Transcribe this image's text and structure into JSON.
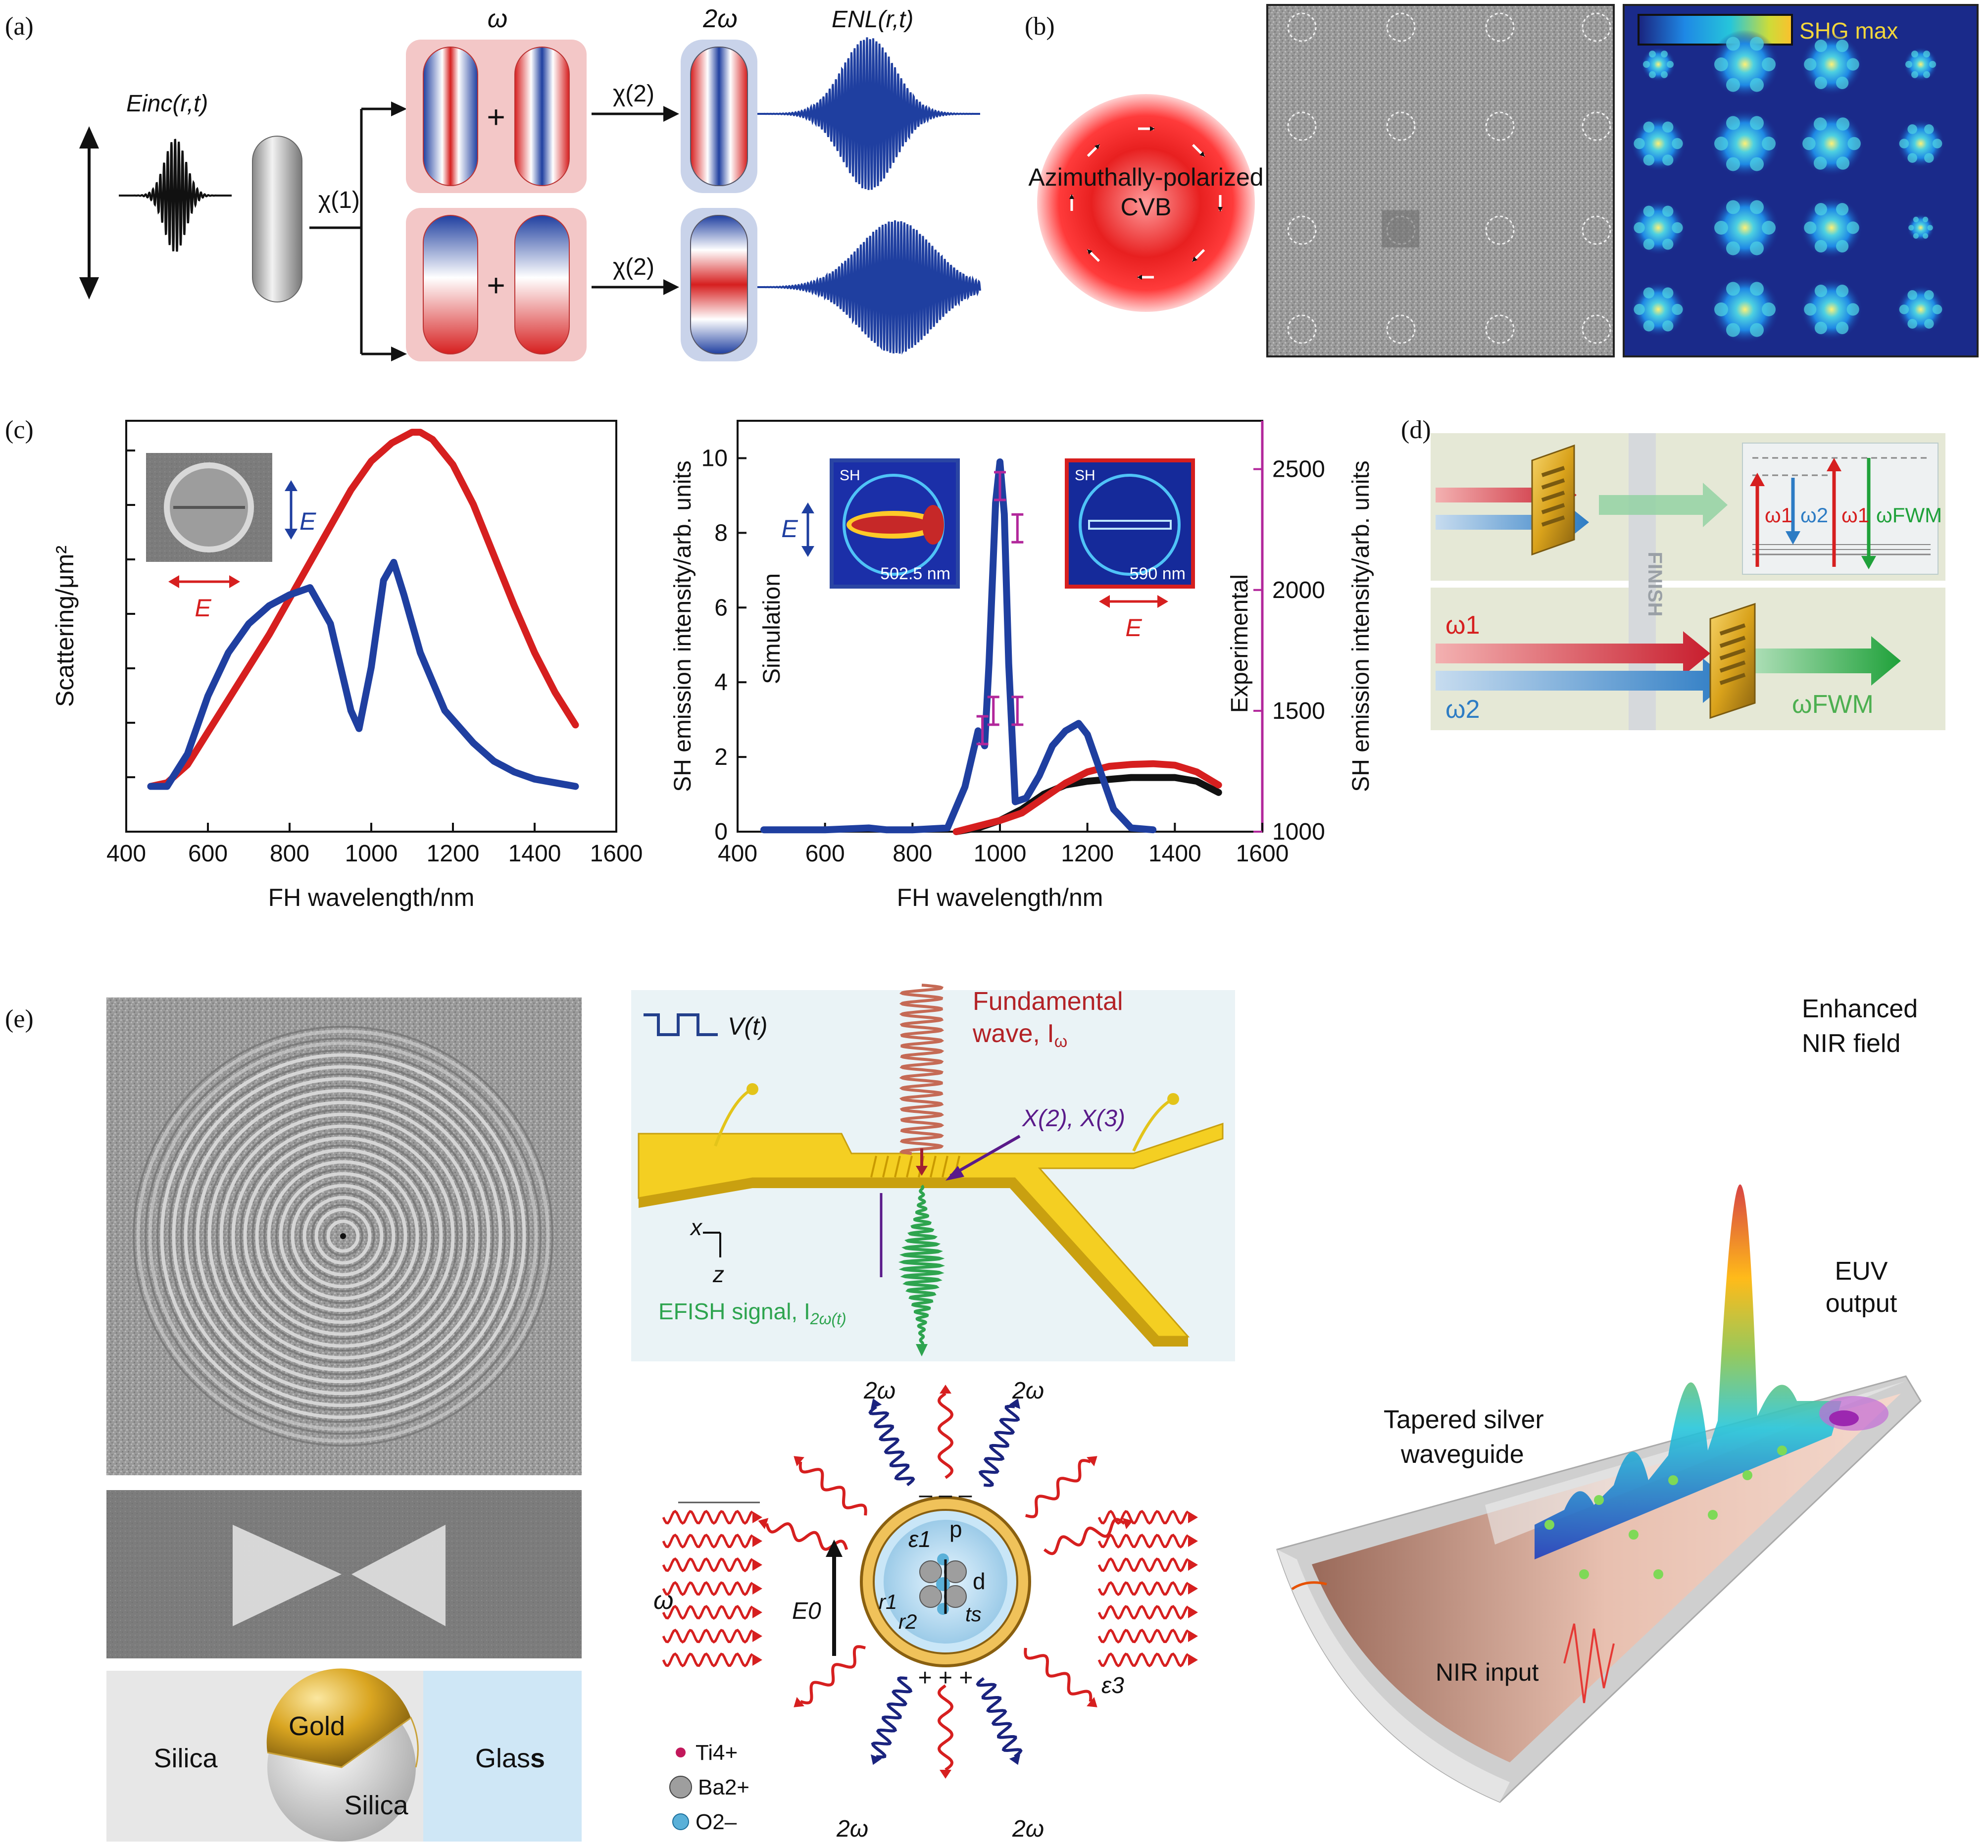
{
  "labels": {
    "a": "(a)",
    "b": "(b)",
    "c": "(c)",
    "d": "(d)",
    "e": "(e)"
  },
  "panel_a": {
    "omega": "ω",
    "two_omega": "2ω",
    "e_inc": "Einc(r,t)",
    "e_nl": "ENL(r,t)",
    "chi1": "χ(1)",
    "chi2": "χ(2)",
    "plus": "+"
  },
  "panel_b": {
    "cvb_line1": "Azimuthally-polarized",
    "cvb_line2": "CVB",
    "colorbar_label": "SHG max"
  },
  "panel_c": {
    "left_chart": {
      "type": "line",
      "xlabel": "FH wavelength/nm",
      "ylabel": "Scattering/μm²",
      "xlim": [
        400,
        1600
      ],
      "xticks": [
        400,
        600,
        800,
        1000,
        1200,
        1400,
        1600
      ],
      "series": [
        {
          "color": "#d61f1f",
          "x": [
            460,
            500,
            550,
            600,
            650,
            700,
            750,
            800,
            850,
            900,
            950,
            1000,
            1050,
            1100,
            1120,
            1150,
            1200,
            1250,
            1300,
            1350,
            1400,
            1450,
            1500
          ],
          "y": [
            0.05,
            0.06,
            0.11,
            0.2,
            0.29,
            0.38,
            0.47,
            0.57,
            0.67,
            0.77,
            0.87,
            0.95,
            1.0,
            1.03,
            1.03,
            1.01,
            0.94,
            0.83,
            0.69,
            0.55,
            0.42,
            0.31,
            0.22
          ]
        },
        {
          "color": "#1f3fa0",
          "x": [
            460,
            500,
            550,
            600,
            650,
            700,
            750,
            800,
            850,
            900,
            950,
            970,
            1000,
            1030,
            1055,
            1080,
            1120,
            1180,
            1250,
            1300,
            1350,
            1400,
            1450,
            1500
          ],
          "y": [
            0.05,
            0.05,
            0.14,
            0.3,
            0.42,
            0.5,
            0.55,
            0.58,
            0.6,
            0.5,
            0.26,
            0.21,
            0.38,
            0.62,
            0.67,
            0.58,
            0.42,
            0.26,
            0.17,
            0.12,
            0.09,
            0.07,
            0.06,
            0.05
          ]
        }
      ],
      "inset_e_top": "E",
      "inset_e_bottom": "E"
    },
    "right_chart": {
      "type": "line",
      "xlabel": "FH wavelength/nm",
      "ylabel_left": "SH emission intensity/arb. units",
      "ylabel_right": "SH emission intensity/arb. units",
      "label_left": "Simulation",
      "label_right": "Experimental",
      "xlim": [
        400,
        1600
      ],
      "ylim_left": [
        0,
        11
      ],
      "ylim_right": [
        1000,
        2700
      ],
      "xticks": [
        400,
        600,
        800,
        1000,
        1200,
        1400,
        1600
      ],
      "yticks_left": [
        0,
        2,
        4,
        6,
        8,
        10
      ],
      "yticks_right": [
        1000,
        1500,
        2000,
        2500
      ],
      "series": [
        {
          "color": "#111111",
          "x": [
            900,
            950,
            1000,
            1050,
            1100,
            1150,
            1200,
            1250,
            1300,
            1350,
            1400,
            1450,
            1500
          ],
          "y": [
            0,
            0.1,
            0.3,
            0.6,
            1.0,
            1.25,
            1.35,
            1.4,
            1.45,
            1.45,
            1.45,
            1.35,
            1.05
          ]
        },
        {
          "color": "#d61f1f",
          "x": [
            900,
            950,
            1000,
            1050,
            1100,
            1150,
            1200,
            1250,
            1300,
            1350,
            1400,
            1450,
            1500
          ],
          "y": [
            0,
            0.15,
            0.3,
            0.5,
            0.9,
            1.3,
            1.6,
            1.75,
            1.8,
            1.82,
            1.78,
            1.6,
            1.25
          ]
        },
        {
          "color": "#1f3fa0",
          "x": [
            460,
            600,
            700,
            740,
            800,
            880,
            920,
            950,
            965,
            975,
            990,
            1000,
            1010,
            1020,
            1035,
            1060,
            1090,
            1120,
            1150,
            1180,
            1200,
            1230,
            1260,
            1300,
            1350
          ],
          "y": [
            0.05,
            0.05,
            0.1,
            0.05,
            0.05,
            0.1,
            1.2,
            2.7,
            2.3,
            4.5,
            8.8,
            9.9,
            8.5,
            4.5,
            0.8,
            0.9,
            1.5,
            2.3,
            2.7,
            2.9,
            2.6,
            1.6,
            0.6,
            0.1,
            0.05
          ]
        }
      ],
      "error_bars": [
        {
          "x": 1000,
          "y_right": 2430
        },
        {
          "x": 1040,
          "y_right": 2255
        },
        {
          "x": 985,
          "y_right": 1500
        },
        {
          "x": 1040,
          "y_right": 1500
        },
        {
          "x": 960,
          "y_right": 1420
        }
      ],
      "inset_left": {
        "sh": "SH",
        "wavelength": "502.5 nm",
        "e": "E"
      },
      "inset_right": {
        "sh": "SH",
        "wavelength": "590 nm",
        "e": "E"
      }
    }
  },
  "panel_d": {
    "finish": "FINISH",
    "w1_top": "ω1",
    "w2_top": "ω2",
    "w1b_top": "ω1",
    "wfwm_top": "ωFWM",
    "w1": "ω1",
    "w2": "ω2",
    "wfwm": "ωFWM"
  },
  "panel_e": {
    "silica_left": "Silica",
    "gold": "Gold",
    "silica_sphere": "Silica",
    "glass": "Glas",
    "glass_bold": "s",
    "vt": "V(t)",
    "fundamental_1": "Fundamental",
    "fundamental_2": "wave, I",
    "fundamental_sub": "ω",
    "chi": "X(2), X(3)",
    "axis_x": "x",
    "axis_z": "z",
    "efish": "EFISH signal, I",
    "efish_sub": "2ω(t)",
    "two_w": "2ω",
    "omega": "ω",
    "e0": "E0",
    "eps1": "ε1",
    "eps3": "ε3",
    "p": "p",
    "d": "d",
    "r1": "r1",
    "r2": "r2",
    "ts": "ts",
    "ti": "Ti4+",
    "ba": "Ba2+",
    "o": "O2–",
    "enhanced_1": "Enhanced",
    "enhanced_2": "NIR field",
    "euv_1": "EUV",
    "euv_2": "output",
    "tapered_1": "Tapered silver",
    "tapered_2": "waveguide",
    "nir_input": "NIR input"
  }
}
